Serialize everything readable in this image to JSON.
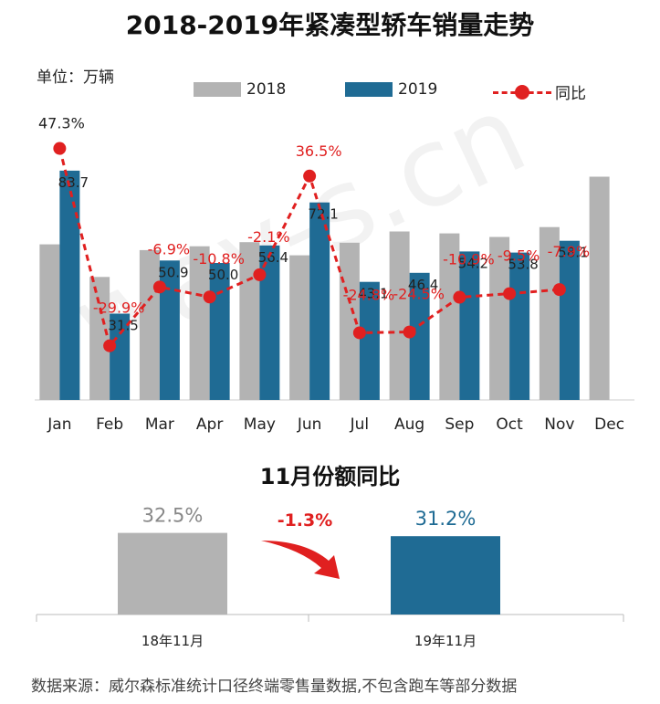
{
  "title": "2018-2019年紧凑型轿车销量走势",
  "unit_label": "单位：万辆",
  "legend": {
    "s2018": "2018",
    "s2019": "2019",
    "yoy": "同比"
  },
  "colors": {
    "s2018": "#b3b3b3",
    "s2019": "#1f6b94",
    "yoy": "#e02020"
  },
  "chart_data": [
    {
      "type": "bar",
      "categories": [
        "Jan",
        "Feb",
        "Mar",
        "Apr",
        "May",
        "Jun",
        "Jul",
        "Aug",
        "Sep",
        "Oct",
        "Nov",
        "Dec"
      ],
      "series": [
        {
          "name": "2018",
          "values": [
            56.8,
            44.9,
            54.7,
            56.1,
            57.6,
            52.8,
            57.4,
            61.5,
            60.8,
            59.5,
            63.1,
            81.5
          ]
        },
        {
          "name": "2019",
          "values": [
            83.7,
            31.5,
            50.9,
            50.0,
            56.4,
            72.1,
            43.1,
            46.4,
            54.2,
            53.8,
            58.1,
            null
          ],
          "labels": [
            "83.7",
            "31.5",
            "50.9",
            "50.0",
            "56.4",
            "72.1",
            "43.1",
            "46.4",
            "54.2",
            "53.8",
            "58.1",
            ""
          ]
        },
        {
          "name": "同比",
          "type": "line",
          "values": [
            47.3,
            -29.9,
            -6.9,
            -10.8,
            -2.1,
            36.5,
            -24.8,
            -24.5,
            -10.9,
            -9.5,
            -7.9,
            null
          ],
          "labels": [
            "47.3%",
            "-29.9%",
            "-6.9%",
            "-10.8%",
            "-2.1%",
            "36.5%",
            "-24.8%",
            "-24.5%",
            "-10.9%",
            "-9.5%",
            "-7.9%",
            ""
          ]
        }
      ]
    },
    {
      "type": "bar",
      "title": "11月份额同比",
      "categories": [
        "18年11月",
        "19年11月"
      ],
      "values": [
        32.5,
        31.2
      ],
      "labels": [
        "32.5%",
        "31.2%"
      ],
      "change_label": "-1.3%"
    }
  ],
  "source": "数据来源：威尔森标准统计口径终端零售量数据,不包含跑车等部分数据",
  "watermark": "way-s.cn"
}
